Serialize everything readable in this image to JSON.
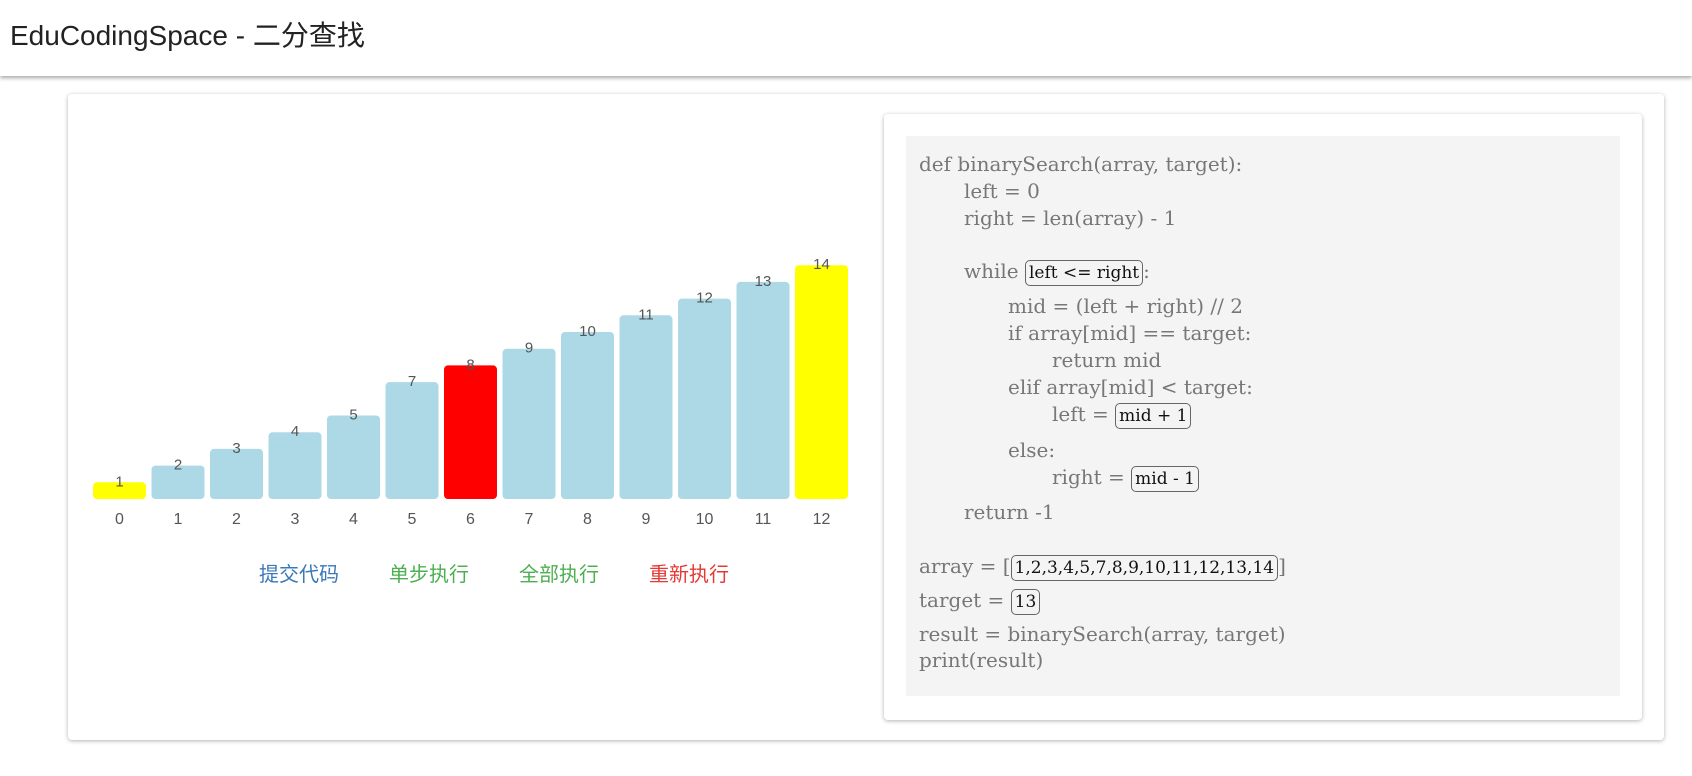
{
  "app": {
    "title": "EduCodingSpace - 二分查找"
  },
  "chart_data": {
    "type": "bar",
    "categories": [
      "0",
      "1",
      "2",
      "3",
      "4",
      "5",
      "6",
      "7",
      "8",
      "9",
      "10",
      "11",
      "12"
    ],
    "values": [
      1,
      2,
      3,
      4,
      5,
      7,
      8,
      9,
      10,
      11,
      12,
      13,
      14
    ],
    "bar_states": [
      "bound",
      "default",
      "default",
      "default",
      "default",
      "default",
      "mid",
      "default",
      "default",
      "default",
      "default",
      "default",
      "bound"
    ],
    "colors": {
      "default": "#add8e6",
      "bound": "#ffff00",
      "mid": "#ff0000"
    }
  },
  "controls": {
    "submit_label": "提交代码",
    "submit_color": "#3a78b9",
    "step_label": "单步执行",
    "step_color": "#4caf50",
    "run_all_label": "全部执行",
    "run_all_color": "#4caf50",
    "reset_label": "重新执行",
    "reset_color": "#e53935"
  },
  "code": {
    "def_line": "def binarySearch(array, target):",
    "left_init": "left = 0",
    "right_init": "right = len(array) - 1",
    "while_prefix": "while ",
    "while_cond": "left <= right",
    "while_suffix": ":",
    "mid_line": "mid = (left + right) // 2",
    "if_line": "if array[mid] == target:",
    "return_mid": "return mid",
    "elif_line": "elif array[mid] < target:",
    "left_assign_prefix": "left = ",
    "left_assign_value": "mid + 1",
    "else_line": "else:",
    "right_assign_prefix": "right = ",
    "right_assign_value": "mid - 1",
    "return_neg": "return -1",
    "array_prefix": "array = [",
    "array_value": "1,2,3,4,5,7,8,9,10,11,12,13,14",
    "array_suffix": "]",
    "target_prefix": "target = ",
    "target_value": "13",
    "result_line": "result = binarySearch(array, target)",
    "print_line": "print(result)"
  }
}
